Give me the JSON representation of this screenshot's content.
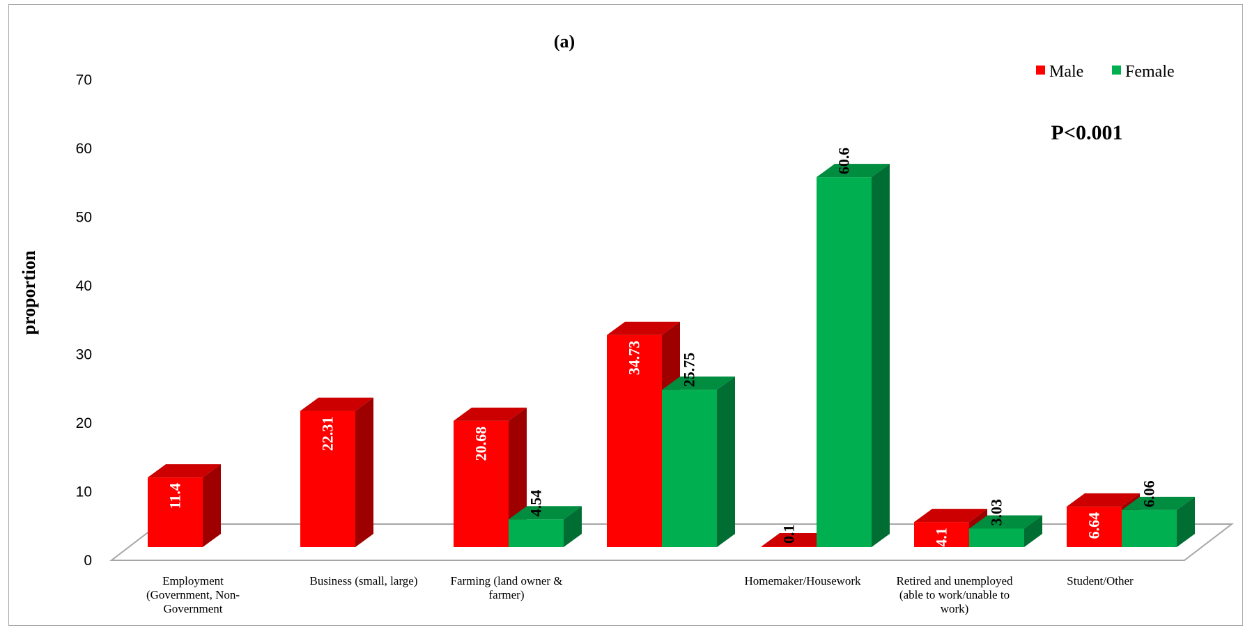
{
  "chart_data": {
    "type": "bar",
    "title": "(a)",
    "ylabel": "proportion",
    "annotation": "P<0.001",
    "ylim": [
      0,
      70
    ],
    "yticks": [
      "0",
      "10",
      "20",
      "30",
      "40",
      "50",
      "60",
      "70"
    ],
    "legend_position": "top-right",
    "categories": [
      [
        "Employment",
        "(Government, Non-",
        "Government"
      ],
      [
        "Business (small, large)"
      ],
      [
        "Farming (land owner &",
        "farmer)"
      ],
      [
        ""
      ],
      [
        "Homemaker/Housework"
      ],
      [
        "Retired and unemployed",
        "(able to work/unable to",
        "work)"
      ],
      [
        "Student/Other"
      ]
    ],
    "series": [
      {
        "name": "Male",
        "color": "#ff0000",
        "values": [
          11.4,
          22.31,
          20.68,
          34.73,
          0.1,
          4.1,
          6.64
        ],
        "labels": [
          "11.4",
          "22.31",
          "20.68",
          "34.73",
          "0.1",
          "4.1",
          "6.64"
        ]
      },
      {
        "name": "Female",
        "color": "#00b050",
        "values": [
          null,
          null,
          4.54,
          25.75,
          60.6,
          3.03,
          6.06
        ],
        "labels": [
          "",
          "",
          "4.54",
          "25.75",
          "60.6",
          "3.03",
          "6.06"
        ]
      }
    ]
  }
}
